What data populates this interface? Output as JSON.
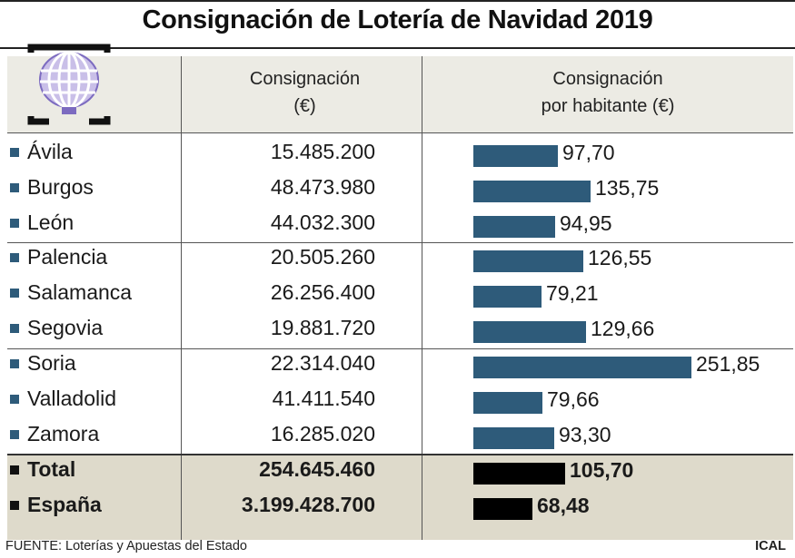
{
  "title": "Consignación de Lotería de Navidad 2019",
  "columns": {
    "consignacion": [
      "Consignación",
      "(€)"
    ],
    "por_habitante": [
      "Consignación",
      "por habitante (€)"
    ]
  },
  "colors": {
    "bar": "#2e5b7a",
    "total_bar": "#000000",
    "header_bg": "#ecebe4",
    "total_bg": "#dedacb"
  },
  "logo_icon": "lottery-drum-icon",
  "chart_data": {
    "type": "bar",
    "orientation": "horizontal",
    "title": "Consignación de Lotería de Navidad 2019",
    "categories": [
      "Ávila",
      "Burgos",
      "León",
      "Palencia",
      "Salamanca",
      "Segovia",
      "Soria",
      "Valladolid",
      "Zamora",
      "Total",
      "España"
    ],
    "series": [
      {
        "name": "Consignación por habitante (€)",
        "values": [
          97.7,
          135.75,
          94.95,
          126.55,
          79.21,
          129.66,
          251.85,
          79.66,
          93.3,
          105.7,
          68.48
        ]
      }
    ],
    "rows": [
      {
        "name": "Ávila",
        "consignacion": "15.485.200",
        "per_capita": 97.7,
        "per_capita_label": "97,70",
        "total": false
      },
      {
        "name": "Burgos",
        "consignacion": "48.473.980",
        "per_capita": 135.75,
        "per_capita_label": "135,75",
        "total": false
      },
      {
        "name": "León",
        "consignacion": "44.032.300",
        "per_capita": 94.95,
        "per_capita_label": "94,95",
        "total": false
      },
      {
        "name": "Palencia",
        "consignacion": "20.505.260",
        "per_capita": 126.55,
        "per_capita_label": "126,55",
        "total": false
      },
      {
        "name": "Salamanca",
        "consignacion": "26.256.400",
        "per_capita": 79.21,
        "per_capita_label": "79,21",
        "total": false
      },
      {
        "name": "Segovia",
        "consignacion": "19.881.720",
        "per_capita": 129.66,
        "per_capita_label": "129,66",
        "total": false
      },
      {
        "name": "Soria",
        "consignacion": "22.314.040",
        "per_capita": 251.85,
        "per_capita_label": "251,85",
        "total": false
      },
      {
        "name": "Valladolid",
        "consignacion": "41.411.540",
        "per_capita": 79.66,
        "per_capita_label": "79,66",
        "total": false
      },
      {
        "name": "Zamora",
        "consignacion": "16.285.020",
        "per_capita": 93.3,
        "per_capita_label": "93,30",
        "total": false
      },
      {
        "name": "Total",
        "consignacion": "254.645.460",
        "per_capita": 105.7,
        "per_capita_label": "105,70",
        "total": true
      },
      {
        "name": "España",
        "consignacion": "3.199.428.700",
        "per_capita": 68.48,
        "per_capita_label": "68,48",
        "total": true
      }
    ],
    "xlim": [
      0,
      251.85
    ],
    "grid": false,
    "legend": "none"
  },
  "footer": {
    "source": "FUENTE: Loterías y Apuestas del Estado",
    "brand": "ICAL"
  }
}
